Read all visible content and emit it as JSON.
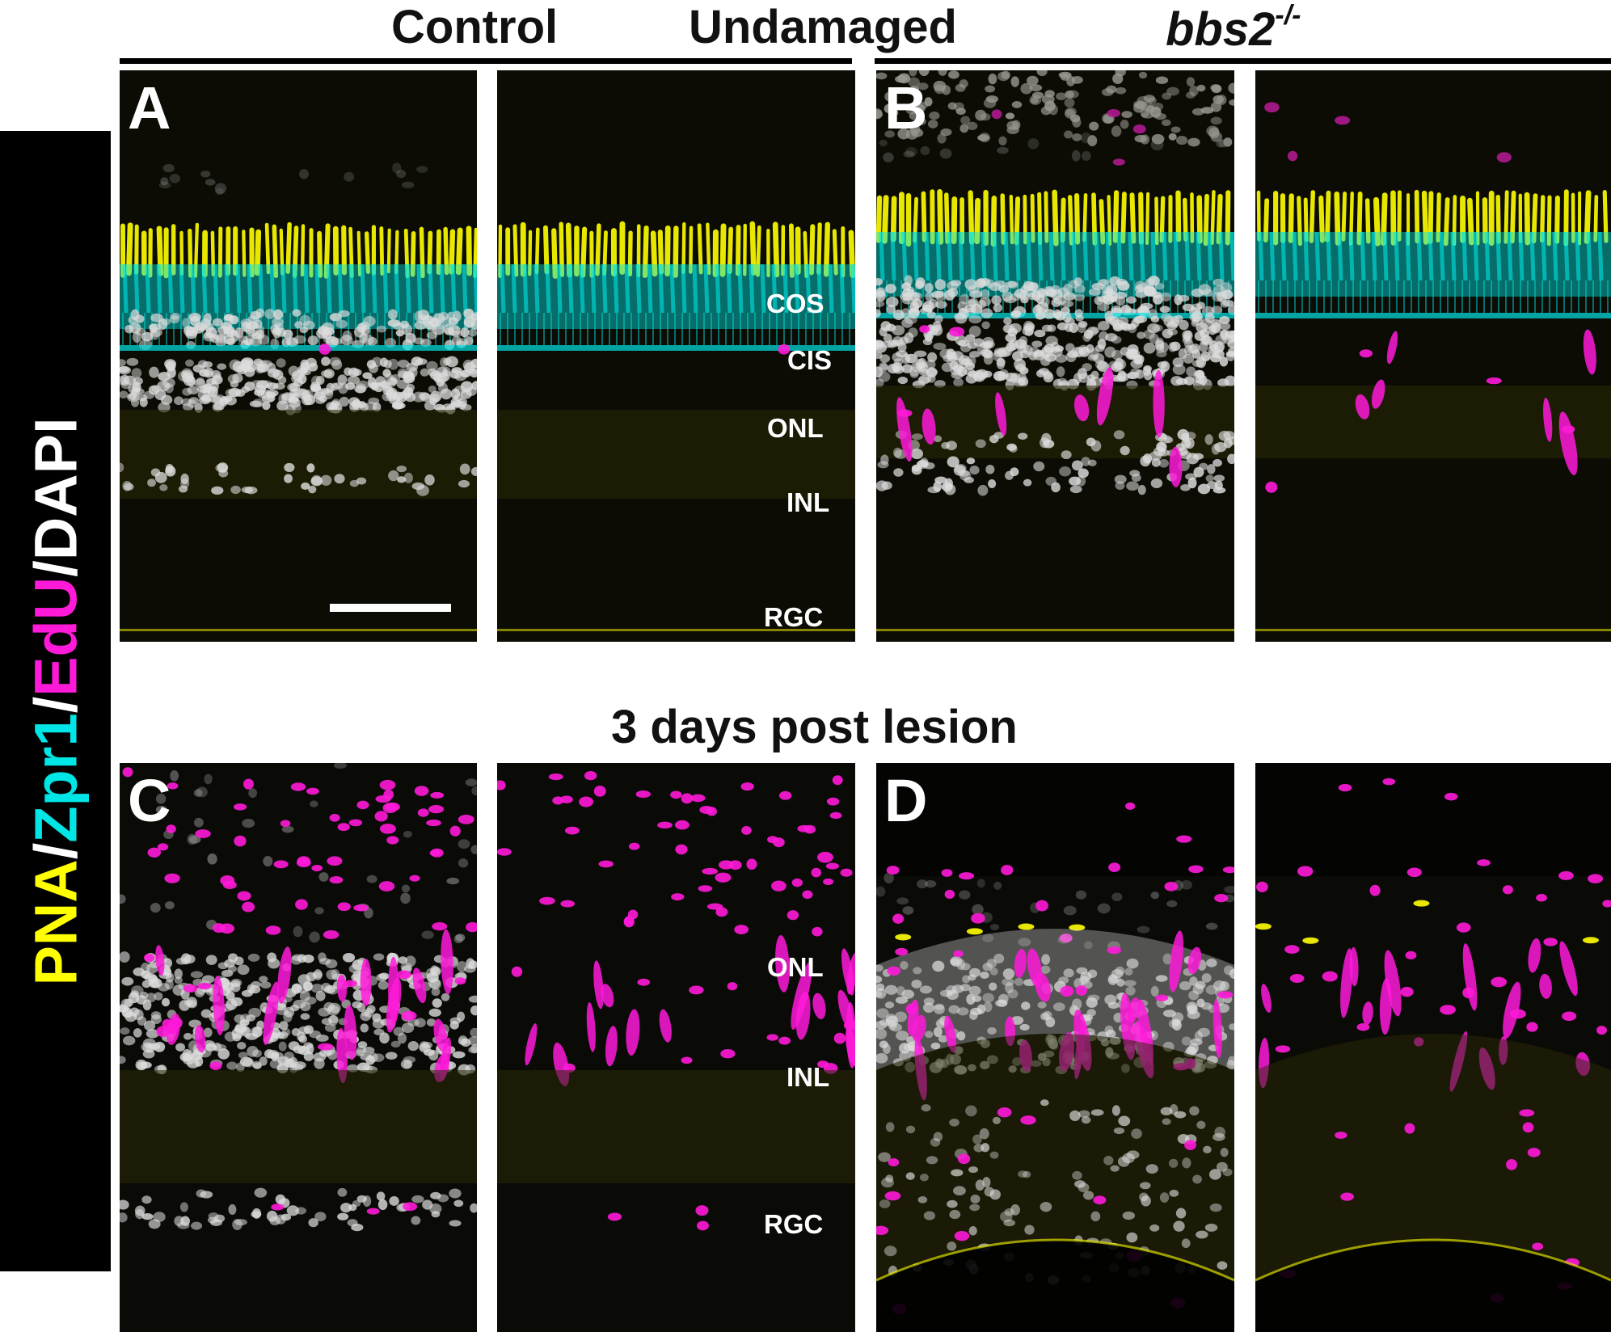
{
  "headers": {
    "control": "Control",
    "undamaged": "Undamaged",
    "mutant_base": "bbs2",
    "mutant_sup": "-/-",
    "lesion": "3 days post lesion"
  },
  "panel_labels": {
    "A": "A",
    "B": "B",
    "C": "C",
    "D": "D"
  },
  "layers_top": {
    "cos": "COS",
    "cis": "CIS",
    "onl": "ONL",
    "inl": "INL",
    "rgc": "RGC"
  },
  "layers_bottom": {
    "onl": "ONL",
    "inl": "INL",
    "rgc": "RGC"
  },
  "stain_legend": [
    {
      "text": "PNA",
      "color": "#ffff00"
    },
    {
      "text": "/",
      "color": "#ffffff"
    },
    {
      "text": "Zpr1",
      "color": "#00e5e5"
    },
    {
      "text": "/",
      "color": "#ffffff"
    },
    {
      "text": "EdU",
      "color": "#ff1ad9"
    },
    {
      "text": "/DAPI",
      "color": "#ffffff"
    }
  ],
  "colors": {
    "pna": "#ffff00",
    "zpr1": "#00e5e5",
    "edu": "#ff1ad9",
    "dapi": "#dcdcdc",
    "background": "#050505"
  }
}
